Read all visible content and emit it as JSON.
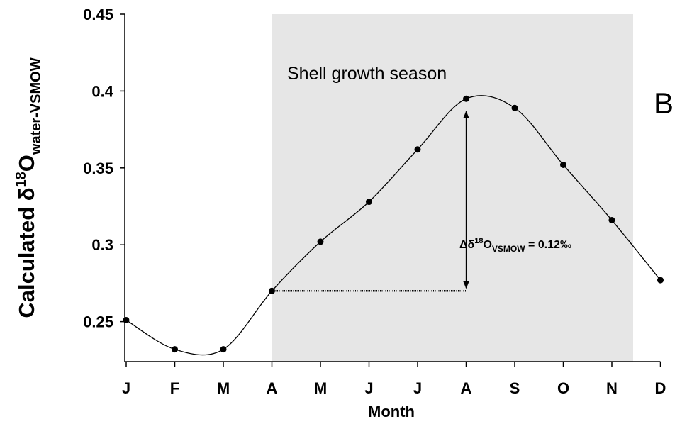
{
  "chart_data": {
    "type": "line",
    "y_label": {
      "prefix": "Calculated δ",
      "sup": "18",
      "main": "O",
      "sub": "water-VSMOW"
    },
    "x_label": "Month",
    "panel_label": "B",
    "shade_label": "Shell growth season",
    "annotation": {
      "prefix": "Δδ",
      "sup": "18",
      "main": "O",
      "sub": "VSMOW",
      "suffix": " = 0.12‰"
    },
    "categories": [
      "J",
      "F",
      "M",
      "A",
      "M",
      "J",
      "J",
      "A",
      "S",
      "O",
      "N",
      "D"
    ],
    "values": [
      0.251,
      0.232,
      0.232,
      0.27,
      0.302,
      0.328,
      0.362,
      0.395,
      0.389,
      0.352,
      0.316,
      0.277
    ],
    "color": "#000000",
    "ylim": [
      0.224,
      0.45
    ],
    "yticks": [
      0.25,
      0.3,
      0.35,
      0.4,
      0.45
    ],
    "grid": false
  }
}
